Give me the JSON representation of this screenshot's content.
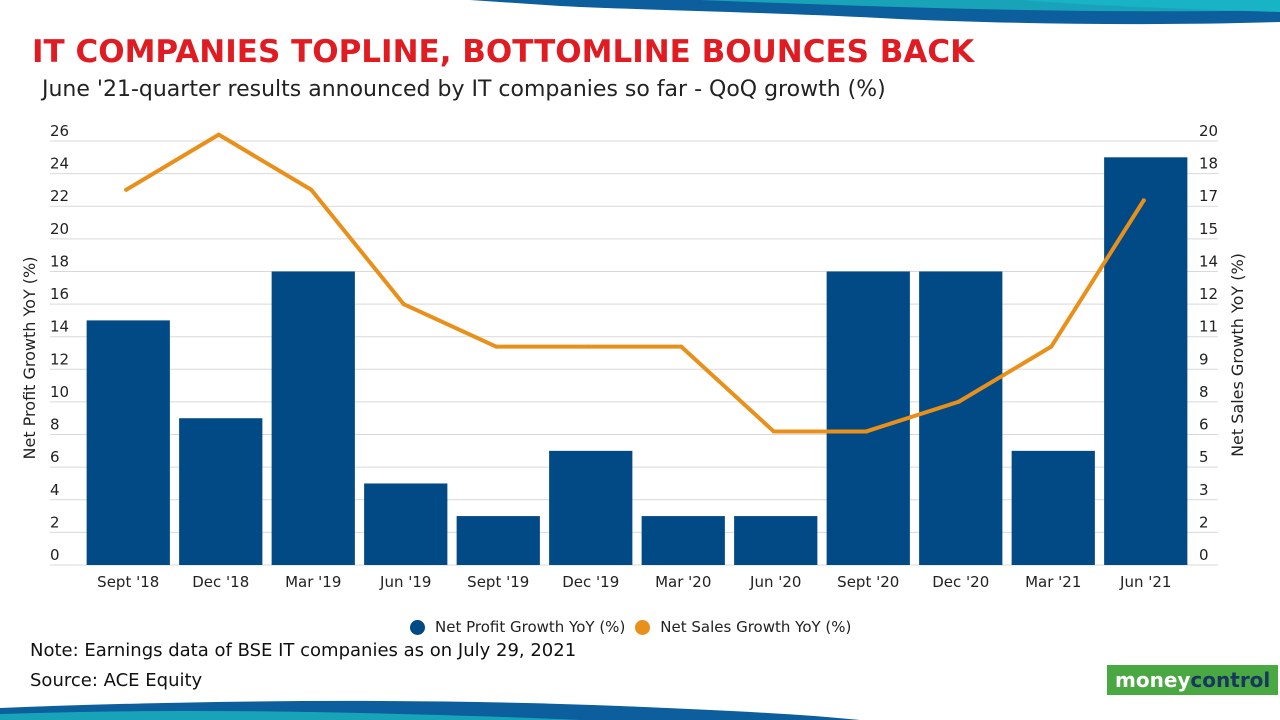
{
  "header": {
    "title": "IT COMPANIES TOPLINE, BOTTOMLINE BOUNCES BACK",
    "subtitle": "June '21-quarter results announced by IT companies so far  - QoQ growth (%)"
  },
  "colors": {
    "bar": "#014a86",
    "line": "#e8901a",
    "title": "#e01b22",
    "grid": "#d9d9d9"
  },
  "chart_data": {
    "type": "bar",
    "categories": [
      "Sept '18",
      "Dec '18",
      "Mar '19",
      "Jun '19",
      "Sept '19",
      "Dec '19",
      "Mar '20",
      "Jun '20",
      "Sept '20",
      "Dec '20",
      "Mar '21",
      "Jun '21"
    ],
    "series": [
      {
        "name": "Net Profit Growth YoY (%)",
        "type": "bar",
        "axis": "left",
        "values": [
          15,
          9,
          18,
          5,
          3,
          7,
          3,
          3,
          18,
          18,
          7,
          25
        ]
      },
      {
        "name": "Net Sales Growth YoY (%)",
        "type": "line",
        "axis": "right",
        "values": [
          17.7,
          20.3,
          17.7,
          12.3,
          10.3,
          10.3,
          10.3,
          6.3,
          6.3,
          7.7,
          10.3,
          17.2
        ]
      }
    ],
    "ylabel_left": "Net Profit Growth YoY (%)",
    "ylabel_right": "Net Sales Growth YoY (%)",
    "ylim_left": [
      0,
      26
    ],
    "ylim_right": [
      0,
      20
    ],
    "yticks_left": [
      "0",
      "2",
      "4",
      "6",
      "8",
      "10",
      "12",
      "14",
      "16",
      "18",
      "20",
      "22",
      "24",
      "26"
    ],
    "yticks_right": [
      "0",
      "2",
      "3",
      "5",
      "6",
      "8",
      "9",
      "11",
      "12",
      "14",
      "15",
      "17",
      "18",
      "20"
    ],
    "grid": true,
    "legend_position": "bottom"
  },
  "footer": {
    "note": "Note: Earnings data of BSE IT companies as on July 29, 2021",
    "source": "Source: ACE Equity",
    "logo_part1": "money",
    "logo_part2": "control"
  }
}
